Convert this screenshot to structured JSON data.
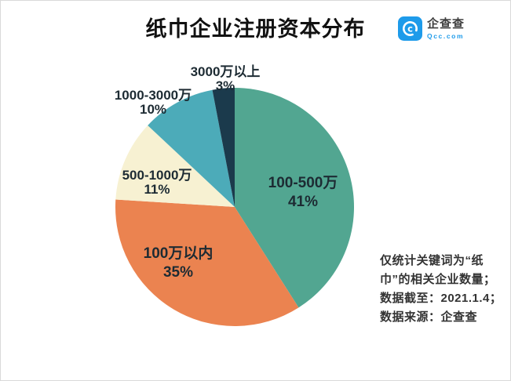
{
  "title": "纸巾企业注册资本分布",
  "logo": {
    "name": "企查查",
    "domain": "Qcc.com",
    "brand_color": "#1e9bea"
  },
  "chart_data": {
    "type": "pie",
    "title": "纸巾企业注册资本分布",
    "unit": "%",
    "start_angle_deg": -90,
    "direction": "clockwise",
    "legend_position": "none",
    "labels_on_chart": true,
    "slices": [
      {
        "key": "100-500w",
        "label": "100-500万",
        "value": 41,
        "pct": "41%",
        "color": "#52a691"
      },
      {
        "key": "under-100w",
        "label": "100万以内",
        "value": 35,
        "pct": "35%",
        "color": "#eb8350"
      },
      {
        "key": "500-1000w",
        "label": "500-1000万",
        "value": 11,
        "pct": "11%",
        "color": "#f7f1d2"
      },
      {
        "key": "1000-3000w",
        "label": "1000-3000万",
        "value": 10,
        "pct": "10%",
        "color": "#4cabb9"
      },
      {
        "key": "over-3000w",
        "label": "3000万以上",
        "value": 3,
        "pct": "3%",
        "color": "#1b3a4c"
      }
    ]
  },
  "footnote": {
    "lines": [
      "仅统计关键词为“纸",
      "巾”的相关企业数量；",
      "数据截至：2021.1.4；",
      "数据来源：企查查"
    ]
  }
}
